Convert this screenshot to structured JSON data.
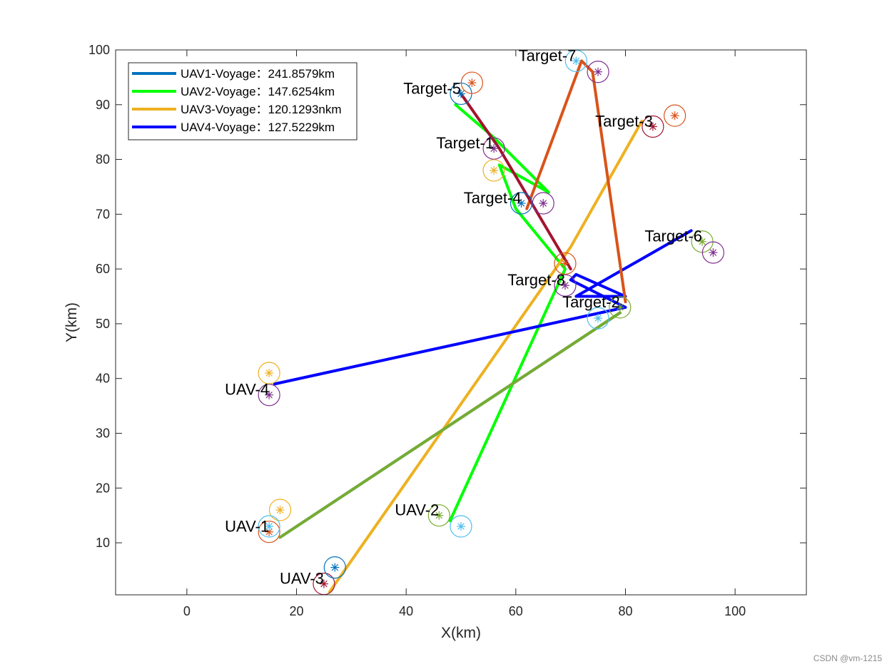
{
  "watermark": "CSDN @vm-1215",
  "chart_data": {
    "type": "line",
    "xlabel": "X(km)",
    "ylabel": "Y(km)",
    "xlim": [
      -13,
      113
    ],
    "ylim": [
      0.5,
      100
    ],
    "xticks": [
      0,
      20,
      40,
      60,
      80,
      100
    ],
    "yticks": [
      10,
      20,
      30,
      40,
      50,
      60,
      70,
      80,
      90,
      100
    ],
    "grid": false,
    "legend_position": "top-left",
    "series": [
      {
        "name": "UAV1-Voyage：241.8579km",
        "color": "#0072BD",
        "x": [
          17,
          79
        ],
        "y": [
          11,
          52
        ]
      },
      {
        "name": "UAV2-Voyage：147.6254km",
        "color": "#00FF00",
        "x": [
          48,
          69,
          60,
          57,
          66,
          56,
          49
        ],
        "y": [
          14,
          60,
          71,
          79,
          74,
          84,
          90
        ]
      },
      {
        "name": "UAV3-Voyage：120.1293nkm",
        "color": "#EDB120",
        "x": [
          26,
          70,
          83
        ],
        "y": [
          1,
          64,
          87
        ]
      },
      {
        "name": "UAV4-Voyage：127.5229km",
        "color": "#0000FF",
        "x": [
          16,
          80,
          70,
          71,
          80,
          71,
          92
        ],
        "y": [
          39,
          53,
          58,
          59,
          55,
          55,
          67
        ]
      }
    ],
    "extra_paths": [
      {
        "color": "#D95319",
        "x": [
          80,
          74,
          72,
          62
        ],
        "y": [
          54,
          96,
          98,
          71
        ]
      },
      {
        "color": "#A2142F",
        "x": [
          50,
          57,
          70
        ],
        "y": [
          92,
          82,
          60
        ]
      },
      {
        "color": "#77AC30",
        "x": [
          17,
          79
        ],
        "y": [
          11,
          52
        ]
      }
    ],
    "points": [
      {
        "x": 15,
        "y": 12,
        "color": "#D95319",
        "label": "UAV-1"
      },
      {
        "x": 17,
        "y": 16,
        "color": "#EDB120"
      },
      {
        "x": 15,
        "y": 13,
        "color": "#4DBEEE"
      },
      {
        "x": 46,
        "y": 15,
        "color": "#77AC30",
        "label": "UAV-2"
      },
      {
        "x": 50,
        "y": 13,
        "color": "#4DBEEE"
      },
      {
        "x": 25,
        "y": 2.5,
        "color": "#A2142F",
        "label": "UAV-3"
      },
      {
        "x": 27,
        "y": 5.5,
        "color": "#0072BD"
      },
      {
        "x": 15,
        "y": 37,
        "color": "#7E2F8E",
        "label": "UAV-4"
      },
      {
        "x": 15,
        "y": 41,
        "color": "#EDB120"
      },
      {
        "x": 56,
        "y": 82,
        "color": "#7E2F8E",
        "label": "Target-1"
      },
      {
        "x": 56,
        "y": 78,
        "color": "#EDB120"
      },
      {
        "x": 79,
        "y": 53,
        "color": "#77AC30",
        "label": "Target-2"
      },
      {
        "x": 75,
        "y": 51,
        "color": "#4DBEEE"
      },
      {
        "x": 85,
        "y": 86,
        "color": "#A2142F",
        "label": "Target-3"
      },
      {
        "x": 89,
        "y": 88,
        "color": "#D95319"
      },
      {
        "x": 61,
        "y": 72,
        "color": "#0072BD",
        "label": "Target-4"
      },
      {
        "x": 65,
        "y": 72,
        "color": "#7E2F8E"
      },
      {
        "x": 50,
        "y": 92,
        "color": "#0072BD",
        "label": "Target-5"
      },
      {
        "x": 52,
        "y": 94,
        "color": "#D95319"
      },
      {
        "x": 94,
        "y": 65,
        "color": "#77AC30",
        "label": "Target-6"
      },
      {
        "x": 96,
        "y": 63,
        "color": "#7E2F8E"
      },
      {
        "x": 71,
        "y": 98,
        "color": "#4DBEEE",
        "label": "Target-7"
      },
      {
        "x": 75,
        "y": 96,
        "color": "#7E2F8E"
      },
      {
        "x": 69,
        "y": 57,
        "color": "#7E2F8E",
        "label": "Target-8"
      },
      {
        "x": 69,
        "y": 61,
        "color": "#D95319"
      }
    ]
  }
}
